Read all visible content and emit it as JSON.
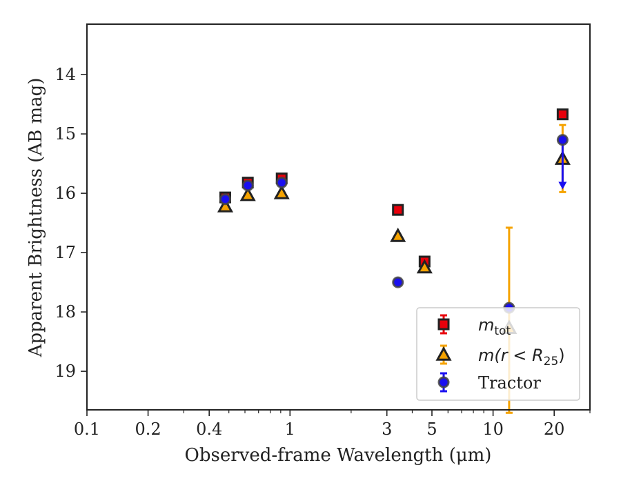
{
  "chart_data": {
    "type": "scatter",
    "title": "",
    "xlabel": "Observed-frame Wavelength (μm)",
    "ylabel": "Apparent Brightness (AB mag)",
    "x_scale": "log",
    "xlim": [
      0.1,
      30
    ],
    "ylim": [
      19.65,
      13.15
    ],
    "y_inverted": true,
    "grid": false,
    "x_ticks": [
      {
        "value": 0.1,
        "label": "0.1"
      },
      {
        "value": 0.2,
        "label": "0.2"
      },
      {
        "value": 0.4,
        "label": "0.4"
      },
      {
        "value": 1,
        "label": "1"
      },
      {
        "value": 3,
        "label": "3"
      },
      {
        "value": 5,
        "label": "5"
      },
      {
        "value": 10,
        "label": "10"
      },
      {
        "value": 20,
        "label": "20"
      }
    ],
    "y_ticks": [
      {
        "value": 14,
        "label": "14"
      },
      {
        "value": 15,
        "label": "15"
      },
      {
        "value": 16,
        "label": "16"
      },
      {
        "value": 17,
        "label": "17"
      },
      {
        "value": 18,
        "label": "18"
      },
      {
        "value": 19,
        "label": "19"
      }
    ],
    "legend_position": "lower right",
    "series": [
      {
        "name": "m_tot",
        "label_main": "m",
        "label_sub": "tot",
        "marker": "square",
        "color": "#e8000b",
        "edge": "#222222",
        "points": [
          {
            "x": 0.48,
            "y": 16.07
          },
          {
            "x": 0.62,
            "y": 15.82
          },
          {
            "x": 0.91,
            "y": 15.75
          },
          {
            "x": 3.4,
            "y": 16.28
          },
          {
            "x": 4.6,
            "y": 17.15
          },
          {
            "x": 22.0,
            "y": 14.67
          }
        ]
      },
      {
        "name": "m(r < R_25)",
        "label_main": "m(r < R",
        "label_sub": "25",
        "label_tail": ")",
        "marker": "triangle",
        "color": "#f5a300",
        "edge": "#222222",
        "points": [
          {
            "x": 0.48,
            "y": 16.22
          },
          {
            "x": 0.62,
            "y": 16.03
          },
          {
            "x": 0.91,
            "y": 16.0
          },
          {
            "x": 3.4,
            "y": 16.72
          },
          {
            "x": 4.6,
            "y": 17.25
          },
          {
            "x": 12.0,
            "y": 18.27,
            "err_low": 16.58,
            "err_high": 19.7
          },
          {
            "x": 22.0,
            "y": 15.42,
            "err_low": 14.85,
            "err_high": 15.98
          }
        ]
      },
      {
        "name": "Tractor",
        "label_main": "Tractor",
        "marker": "circle",
        "color": "#1a0ff0",
        "edge": "#444444",
        "points": [
          {
            "x": 0.48,
            "y": 16.1
          },
          {
            "x": 0.62,
            "y": 15.87
          },
          {
            "x": 0.91,
            "y": 15.82
          },
          {
            "x": 3.4,
            "y": 17.5
          },
          {
            "x": 12.0,
            "y": 17.93
          },
          {
            "x": 22.0,
            "y": 15.1,
            "upper_limit_to": 15.9
          }
        ]
      }
    ]
  }
}
